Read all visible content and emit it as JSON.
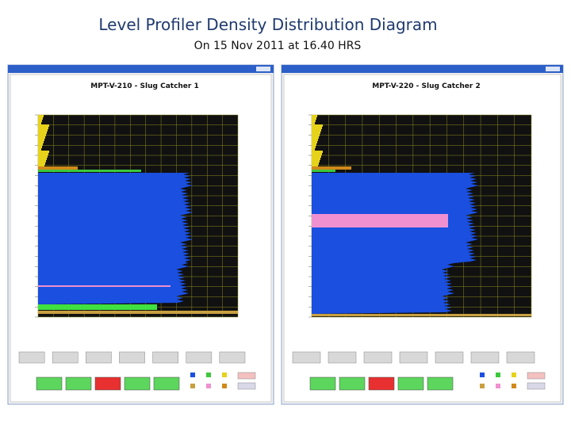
{
  "slide": {
    "title": "Level Profiler Density Distribution Diagram",
    "subtitle": "On 15 Nov 2011 at 16.40 HRS"
  },
  "windows": [
    {
      "chart_title": "MPT-V-210 - Slug Catcher 1"
    },
    {
      "chart_title": "MPT-V-220 - Slug Catcher 2"
    }
  ]
}
